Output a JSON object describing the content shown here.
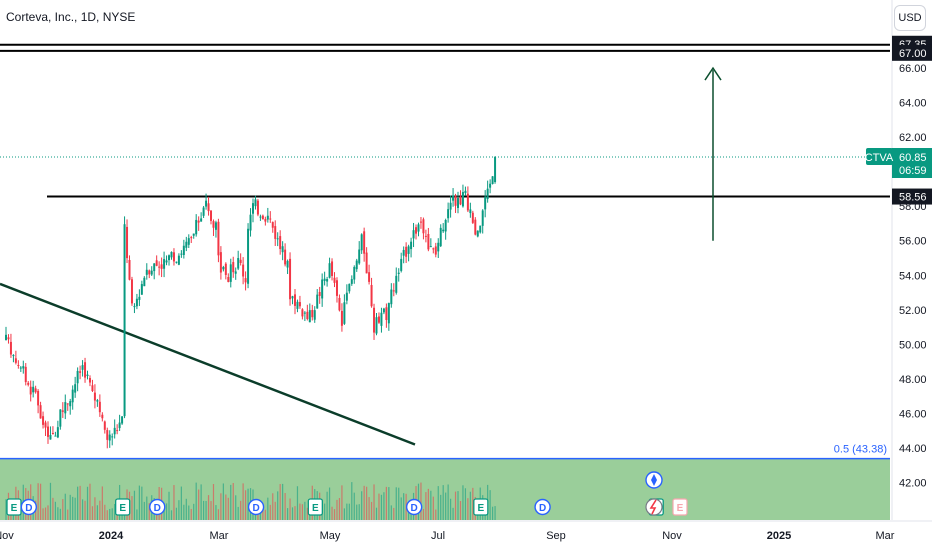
{
  "header": {
    "title": "Corteva, Inc., 1D, NYSE",
    "currency_button": "USD"
  },
  "colors": {
    "up": "#089981",
    "down": "#f23645",
    "volume_bg": "#8fc98f",
    "fib": "#2962ff",
    "drawing": "#000000",
    "arrow": "#0b4f2e",
    "ticker_tag": "#089981"
  },
  "chart_data": {
    "type": "candlestick",
    "symbol": "CTVA",
    "y_axis": {
      "range": [
        40,
        67.8
      ],
      "ticks": [
        "42.00",
        "44.00",
        "46.00",
        "48.00",
        "50.00",
        "52.00",
        "54.00",
        "56.00",
        "58.00",
        "60.00",
        "62.00",
        "64.00",
        "66.00"
      ]
    },
    "x_axis": {
      "ticks": [
        {
          "label": "Nov",
          "bold": false
        },
        {
          "label": "2024",
          "bold": true
        },
        {
          "label": "Mar",
          "bold": false
        },
        {
          "label": "May",
          "bold": false
        },
        {
          "label": "Jul",
          "bold": false
        },
        {
          "label": "Sep",
          "bold": false
        },
        {
          "label": "Nov",
          "bold": false
        },
        {
          "label": "2025",
          "bold": true
        },
        {
          "label": "Mar",
          "bold": false
        }
      ]
    },
    "levels": [
      {
        "label": "67.35",
        "value": 67.35
      },
      {
        "label": "67.00",
        "value": 67.0
      },
      {
        "label": "58.56",
        "value": 58.56
      }
    ],
    "last_price": {
      "ticker": "CTVA",
      "price": "60.85",
      "countdown": "06:59",
      "value": 60.85
    },
    "fib_level": {
      "label": "0.5 (43.38)",
      "value": 43.38
    },
    "target_arrow": {
      "from": 56.0,
      "to": 66.0
    },
    "trendline": {
      "start": 53.5,
      "end": 44.2
    },
    "segments": [
      {
        "n": 12,
        "start": 50.2,
        "end": 47.2
      },
      {
        "n": 6,
        "start": 46.8,
        "end": 44.5
      },
      {
        "n": 14,
        "start": 44.5,
        "end": 48.8
      },
      {
        "n": 10,
        "start": 48.5,
        "end": 44.6
      },
      {
        "n": 6,
        "start": 44.6,
        "end": 45.6
      },
      {
        "n": 4,
        "start": 56.8,
        "end": 52.0
      },
      {
        "n": 6,
        "start": 52.2,
        "end": 54.5
      },
      {
        "n": 8,
        "start": 54.5,
        "end": 54.8
      },
      {
        "n": 10,
        "start": 54.8,
        "end": 56.0
      },
      {
        "n": 6,
        "start": 56.5,
        "end": 58.0
      },
      {
        "n": 4,
        "start": 57.5,
        "end": 57.0
      },
      {
        "n": 4,
        "start": 55.0,
        "end": 53.6
      },
      {
        "n": 5,
        "start": 54.0,
        "end": 54.8
      },
      {
        "n": 3,
        "start": 54.6,
        "end": 53.8
      },
      {
        "n": 3,
        "start": 57.0,
        "end": 58.0
      },
      {
        "n": 6,
        "start": 58.0,
        "end": 57.4
      },
      {
        "n": 8,
        "start": 57.2,
        "end": 54.5
      },
      {
        "n": 8,
        "start": 53.0,
        "end": 51.6
      },
      {
        "n": 9,
        "start": 51.6,
        "end": 54.5
      },
      {
        "n": 5,
        "start": 54.0,
        "end": 51.2
      },
      {
        "n": 8,
        "start": 52.0,
        "end": 56.0
      },
      {
        "n": 4,
        "start": 55.5,
        "end": 52.5
      },
      {
        "n": 6,
        "start": 51.0,
        "end": 51.8
      },
      {
        "n": 8,
        "start": 52.5,
        "end": 55.5
      },
      {
        "n": 6,
        "start": 56.0,
        "end": 57.2
      },
      {
        "n": 6,
        "start": 56.0,
        "end": 55.2
      },
      {
        "n": 6,
        "start": 56.0,
        "end": 58.6
      },
      {
        "n": 6,
        "start": 58.2,
        "end": 58.7
      },
      {
        "n": 5,
        "start": 57.8,
        "end": 56.2
      },
      {
        "n": 5,
        "start": 57.2,
        "end": 59.5
      },
      {
        "n": 2,
        "start": 59.8,
        "end": 60.85
      }
    ],
    "events": [
      {
        "label": "E",
        "kind": "earnings",
        "index": 0
      },
      {
        "label": "D",
        "kind": "dividend",
        "index": 6
      },
      {
        "label": "E",
        "kind": "earnings",
        "index": 44
      },
      {
        "label": "D",
        "kind": "dividend",
        "index": 58
      },
      {
        "label": "D",
        "kind": "dividend",
        "index": 98
      },
      {
        "label": "E",
        "kind": "earnings",
        "index": 122
      },
      {
        "label": "D",
        "kind": "dividend",
        "index": 162
      },
      {
        "label": "E",
        "kind": "earnings",
        "index": 189
      },
      {
        "label": "D",
        "kind": "dividend",
        "index": 214
      },
      {
        "label": "E",
        "kind": "earnings",
        "index": 260
      }
    ]
  }
}
